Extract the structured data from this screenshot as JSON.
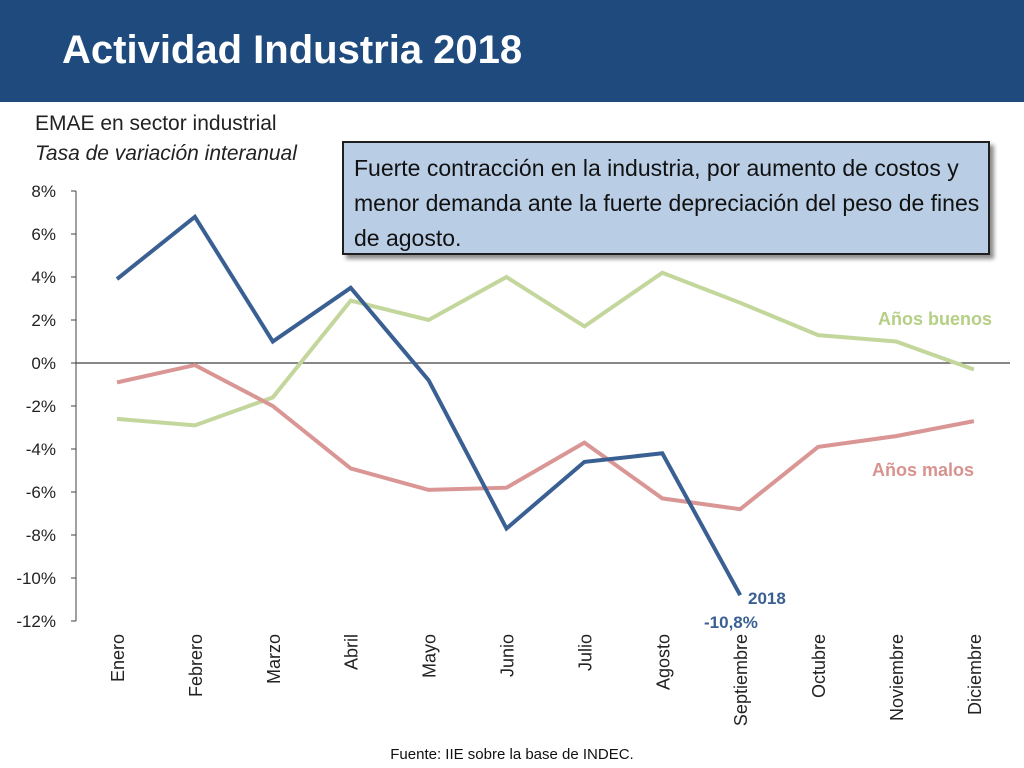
{
  "header": {
    "title": "Actividad Industria 2018"
  },
  "subtitle": {
    "line1": "EMAE en sector industrial",
    "line2": "Tasa de variación interanual"
  },
  "callout": {
    "text": "Fuerte contracción en la industria, por aumento de costos y menor demanda ante la fuerte depreciación del peso de fines de agosto."
  },
  "source": "Fuente: IIE sobre la base de INDEC.",
  "colors": {
    "header": "#1f4a7e",
    "series_2018": "#3a5f92",
    "series_buenos": "#c3d69b",
    "series_malos": "#d99694",
    "label_buenos": "#b5cf85",
    "label_malos": "#d8938f",
    "label_2018": "#3a5f92"
  },
  "chart_data": {
    "type": "line",
    "categories": [
      "Enero",
      "Febrero",
      "Marzo",
      "Abril",
      "Mayo",
      "Junio",
      "Julio",
      "Agosto",
      "Septiembre",
      "Octubre",
      "Noviembre",
      "Diciembre"
    ],
    "ylim": [
      -12,
      8
    ],
    "yticks": [
      "8%",
      "6%",
      "4%",
      "2%",
      "0%",
      "-2%",
      "-4%",
      "-6%",
      "-8%",
      "-10%",
      "-12%"
    ],
    "ytick_values": [
      8,
      6,
      4,
      2,
      0,
      -2,
      -4,
      -6,
      -8,
      -10,
      -12
    ],
    "series": [
      {
        "name": "Años  buenos",
        "key": "buenos",
        "values": [
          -2.6,
          -2.9,
          -1.6,
          2.9,
          2.0,
          4.0,
          1.7,
          4.2,
          2.8,
          1.3,
          1.0,
          -0.3
        ]
      },
      {
        "name": "Años malos",
        "key": "malos",
        "values": [
          -0.9,
          -0.1,
          -2.0,
          -4.9,
          -5.9,
          -5.8,
          -3.7,
          -6.3,
          -6.8,
          -3.9,
          -3.4,
          -2.7
        ]
      },
      {
        "name": "2018",
        "key": "2018",
        "values": [
          3.9,
          6.8,
          1.0,
          3.5,
          -0.8,
          -7.7,
          -4.6,
          -4.2,
          -10.8,
          null,
          null,
          null
        ]
      }
    ],
    "annotations": {
      "last_value_2018": "-10,8%"
    },
    "grid": false,
    "legend": "inline labels"
  }
}
